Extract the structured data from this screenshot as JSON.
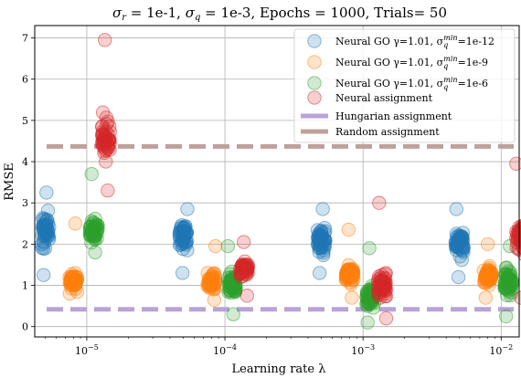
{
  "chart_data": {
    "type": "scatter",
    "title": "σ_r = 1e-1, σ_q = 1e-3, Epochs = 1000, Trials= 50",
    "title_parts": {
      "sigma_r": "σ",
      "sigma_r_sub": "r",
      "sigma_r_val": " = 1e-1, ",
      "sigma_q": "σ",
      "sigma_q_sub": "q",
      "sigma_q_val": " = 1e-3, Epochs = 1000, Trials= 50"
    },
    "xlabel": "Learning rate λ",
    "ylabel": "RMSE",
    "x_scale": "log",
    "xlim": [
      4.2e-06,
      0.0135
    ],
    "ylim": [
      -0.25,
      7.3
    ],
    "x_ticks": [
      {
        "value": 1e-05,
        "base": "10",
        "exp": "−5"
      },
      {
        "value": 0.0001,
        "base": "10",
        "exp": "−4"
      },
      {
        "value": 0.001,
        "base": "10",
        "exp": "−3"
      },
      {
        "value": 0.01,
        "base": "10",
        "exp": "−2"
      }
    ],
    "y_ticks": [
      0,
      1,
      2,
      3,
      4,
      5,
      6,
      7
    ],
    "grid": true,
    "legend_position": "top-right",
    "learning_rates": [
      5e-06,
      5e-05,
      0.0005,
      0.005
    ],
    "series": [
      {
        "name": "Neural GO γ=1.01, σ_q^min=1e-12",
        "label_main": "Neural GO γ=1.01, σ",
        "label_sub": "q",
        "label_sup": "min",
        "label_tail": "=1e-12",
        "color": "#1f77b4",
        "x_factor": 1.0,
        "groups": [
          {
            "center": 2.3,
            "spread": 0.55,
            "min": 1.25,
            "max": 3.25
          },
          {
            "center": 2.2,
            "spread": 0.4,
            "min": 1.3,
            "max": 2.85
          },
          {
            "center": 2.1,
            "spread": 0.4,
            "min": 1.3,
            "max": 2.85
          },
          {
            "center": 2.05,
            "spread": 0.4,
            "min": 1.2,
            "max": 2.85
          }
        ]
      },
      {
        "name": "Neural GO γ=1.01, σ_q^min=1e-9",
        "label_main": "Neural GO γ=1.01, σ",
        "label_sub": "q",
        "label_sup": "min",
        "label_tail": "=1e-9",
        "color": "#ff7f0e",
        "x_factor": 1.6,
        "groups": [
          {
            "center": 1.1,
            "spread": 0.25,
            "min": 0.8,
            "max": 2.5
          },
          {
            "center": 1.1,
            "spread": 0.3,
            "min": 0.65,
            "max": 1.95
          },
          {
            "center": 1.25,
            "spread": 0.3,
            "min": 0.7,
            "max": 2.35
          },
          {
            "center": 1.2,
            "spread": 0.3,
            "min": 0.7,
            "max": 2.0
          }
        ]
      },
      {
        "name": "Neural GO γ=1.01, σ_q^min=1e-6",
        "label_main": "Neural GO γ=1.01, σ",
        "label_sub": "q",
        "label_sup": "min",
        "label_tail": "=1e-6",
        "color": "#2ca02c",
        "x_factor": 2.25,
        "groups": [
          {
            "center": 2.3,
            "spread": 0.35,
            "min": 1.8,
            "max": 3.7
          },
          {
            "center": 1.05,
            "spread": 0.35,
            "min": 0.3,
            "max": 1.95
          },
          {
            "center": 0.7,
            "spread": 0.35,
            "min": 0.1,
            "max": 1.9
          },
          {
            "center": 1.1,
            "spread": 0.4,
            "min": 0.25,
            "max": 1.95
          }
        ]
      },
      {
        "name": "Neural assignment",
        "label_main": "Neural assignment",
        "color": "#d62728",
        "x_factor": 2.75,
        "groups": [
          {
            "center": 4.6,
            "spread": 0.65,
            "min": 3.3,
            "max": 6.95
          },
          {
            "center": 1.4,
            "spread": 0.3,
            "min": 0.75,
            "max": 2.05
          },
          {
            "center": 1.0,
            "spread": 0.45,
            "min": 0.2,
            "max": 3.0
          },
          {
            "center": 2.2,
            "spread": 0.45,
            "min": 0.7,
            "max": 3.95
          }
        ]
      }
    ],
    "reference_lines": [
      {
        "name": "Hungarian assignment",
        "y": 0.42,
        "color": "#b8a3d9"
      },
      {
        "name": "Random assignment",
        "y": 4.37,
        "color": "#bfa09c"
      }
    ]
  }
}
